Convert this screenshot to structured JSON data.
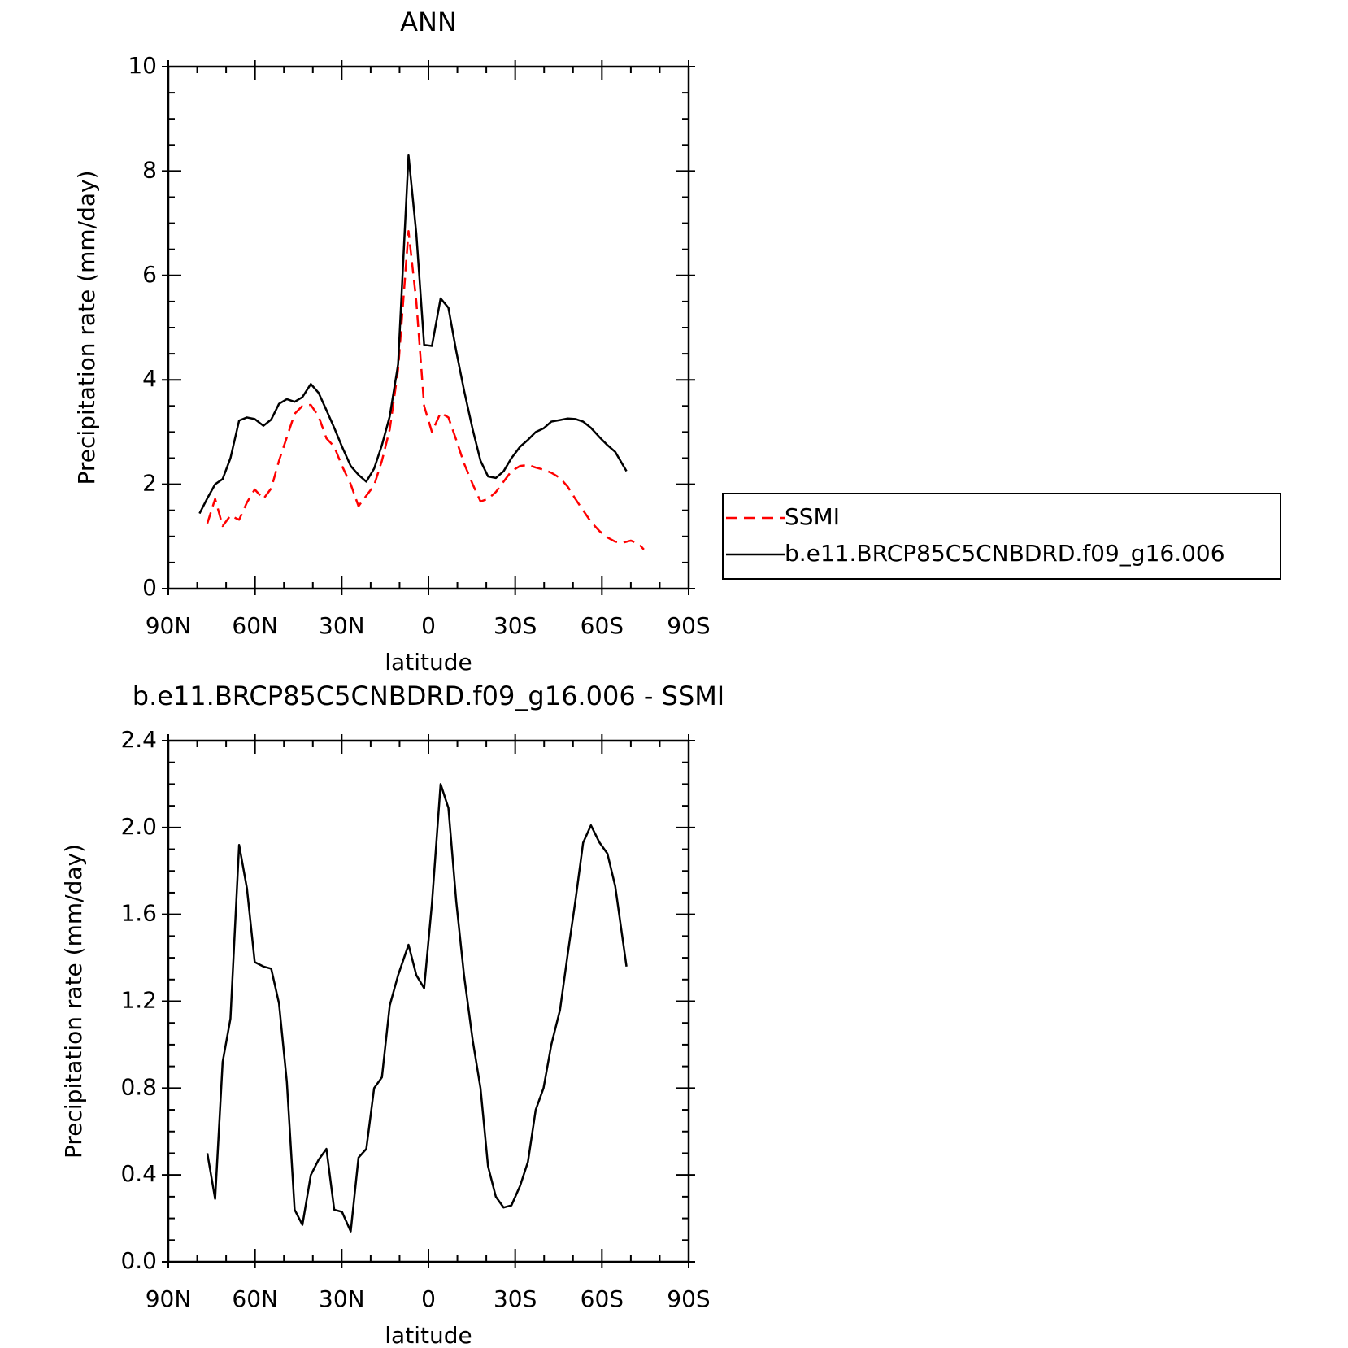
{
  "chart_data": [
    {
      "type": "line",
      "title": "ANN",
      "xlabel": "latitude",
      "ylabel": "Precipitation rate (mm/day)",
      "xlim": [
        90,
        -90
      ],
      "xticks": [
        {
          "value": 90,
          "label": "90N"
        },
        {
          "value": 60,
          "label": "60N"
        },
        {
          "value": 30,
          "label": "30N"
        },
        0,
        {
          "value": -30,
          "label": "30S"
        },
        {
          "value": -60,
          "label": "60S"
        },
        {
          "value": -90,
          "label": "90S"
        }
      ],
      "ylim": [
        0,
        10
      ],
      "yticks": [
        0,
        2,
        4,
        6,
        8,
        10
      ],
      "legend": "right",
      "series": [
        {
          "name": "SSMI",
          "color": "#ff0000",
          "linestyle": "dashed",
          "x": [
            76.5,
            73.8,
            71.2,
            68.5,
            65.5,
            62.8,
            60.1,
            57.1,
            54.4,
            51.7,
            49.0,
            46.3,
            43.6,
            40.7,
            38.0,
            35.3,
            32.6,
            29.9,
            26.9,
            24.2,
            21.5,
            18.8,
            16.1,
            13.4,
            10.5,
            6.9,
            4.2,
            1.5,
            -1.2,
            -4.2,
            -6.9,
            -9.6,
            -12.3,
            -15.3,
            -18.0,
            -20.6,
            -23.3,
            -26.0,
            -28.7,
            -31.7,
            -34.4,
            -37.1,
            -39.8,
            -42.5,
            -45.5,
            -48.2,
            -50.8,
            -53.5,
            -56.2,
            -59.2,
            -61.9,
            -64.6,
            -67.3,
            -70.0,
            -72.7,
            -74.5
          ],
          "values": [
            1.25,
            1.72,
            1.2,
            1.4,
            1.32,
            1.65,
            1.9,
            1.72,
            1.92,
            2.45,
            2.9,
            3.35,
            3.5,
            3.52,
            3.3,
            2.88,
            2.72,
            2.35,
            2.0,
            1.58,
            1.78,
            1.98,
            2.45,
            3.05,
            4.2,
            6.85,
            5.5,
            3.5,
            3.0,
            3.37,
            3.28,
            2.85,
            2.4,
            2.0,
            1.67,
            1.72,
            1.85,
            2.05,
            2.25,
            2.35,
            2.37,
            2.32,
            2.28,
            2.22,
            2.12,
            1.95,
            1.72,
            1.5,
            1.28,
            1.1,
            0.98,
            0.9,
            0.88,
            0.92,
            0.86,
            0.75
          ]
        },
        {
          "name": "b.e11.BRCP85C5CNBDRD.f09_g16.006",
          "color": "#000000",
          "linestyle": "solid",
          "x": [
            79.2,
            76.5,
            73.8,
            71.2,
            68.5,
            65.5,
            62.8,
            60.1,
            57.1,
            54.4,
            51.7,
            49.0,
            46.3,
            43.6,
            40.7,
            38.0,
            35.3,
            32.6,
            29.9,
            26.9,
            24.2,
            21.5,
            18.8,
            16.1,
            13.4,
            10.5,
            6.9,
            4.2,
            1.5,
            -1.2,
            -4.2,
            -6.9,
            -9.6,
            -12.3,
            -15.3,
            -18.0,
            -20.6,
            -23.3,
            -26.0,
            -28.7,
            -31.7,
            -34.4,
            -37.1,
            -39.8,
            -42.5,
            -45.5,
            -48.2,
            -50.8,
            -53.5,
            -56.2,
            -59.2,
            -61.9,
            -64.6,
            -68.5
          ],
          "values": [
            1.44,
            1.73,
            2.0,
            2.1,
            2.5,
            3.22,
            3.28,
            3.25,
            3.12,
            3.24,
            3.54,
            3.63,
            3.58,
            3.67,
            3.92,
            3.75,
            3.42,
            3.08,
            2.72,
            2.35,
            2.18,
            2.05,
            2.3,
            2.75,
            3.3,
            4.3,
            8.3,
            6.8,
            4.67,
            4.65,
            5.56,
            5.38,
            4.55,
            3.8,
            3.05,
            2.45,
            2.15,
            2.12,
            2.25,
            2.5,
            2.72,
            2.85,
            3.0,
            3.07,
            3.2,
            3.23,
            3.26,
            3.25,
            3.2,
            3.08,
            2.9,
            2.75,
            2.62,
            2.25
          ]
        }
      ]
    },
    {
      "type": "line",
      "title": "b.e11.BRCP85C5CNBDRD.f09_g16.006 - SSMI",
      "xlabel": "latitude",
      "ylabel": "Precipitation rate (mm/day)",
      "xlim": [
        90,
        -90
      ],
      "xticks": [
        {
          "value": 90,
          "label": "90N"
        },
        {
          "value": 60,
          "label": "60N"
        },
        {
          "value": 30,
          "label": "30N"
        },
        0,
        {
          "value": -30,
          "label": "30S"
        },
        {
          "value": -60,
          "label": "60S"
        },
        {
          "value": -90,
          "label": "90S"
        }
      ],
      "ylim": [
        0,
        2.4
      ],
      "yticks": [
        {
          "value": 0,
          "label": "0.0"
        },
        0.4,
        0.8,
        1.2,
        1.6,
        {
          "value": 2,
          "label": "2.0"
        },
        2.4
      ],
      "series": [
        {
          "color": "#000000",
          "linestyle": "solid",
          "x": [
            76.5,
            73.8,
            71.2,
            68.5,
            65.5,
            62.8,
            60.1,
            57.1,
            54.4,
            51.7,
            49.0,
            46.3,
            43.6,
            40.7,
            38.0,
            35.3,
            32.6,
            29.9,
            26.9,
            24.2,
            21.5,
            18.8,
            16.1,
            13.4,
            10.5,
            6.9,
            4.2,
            1.5,
            -1.2,
            -4.2,
            -6.9,
            -9.6,
            -12.3,
            -15.3,
            -18.0,
            -20.6,
            -23.3,
            -26.0,
            -28.7,
            -31.7,
            -34.4,
            -37.1,
            -39.8,
            -42.5,
            -45.5,
            -48.2,
            -50.8,
            -53.5,
            -56.2,
            -59.2,
            -61.9,
            -64.6,
            -68.5
          ],
          "values": [
            0.5,
            0.29,
            0.92,
            1.12,
            1.92,
            1.72,
            1.38,
            1.36,
            1.35,
            1.19,
            0.83,
            0.24,
            0.17,
            0.4,
            0.47,
            0.52,
            0.24,
            0.23,
            0.14,
            0.48,
            0.52,
            0.8,
            0.85,
            1.18,
            1.32,
            1.46,
            1.32,
            1.26,
            1.65,
            2.2,
            2.09,
            1.66,
            1.32,
            1.02,
            0.8,
            0.44,
            0.3,
            0.25,
            0.26,
            0.35,
            0.46,
            0.7,
            0.8,
            1.0,
            1.16,
            1.42,
            1.66,
            1.93,
            2.01,
            1.93,
            1.88,
            1.73,
            1.36
          ]
        }
      ]
    }
  ]
}
